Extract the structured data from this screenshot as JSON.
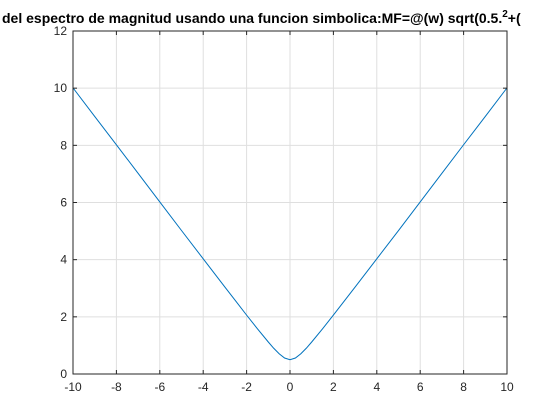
{
  "chart_data": {
    "type": "line",
    "title_prefix": "del espectro de magnitud usando una funcion simbolica:MF=@(w) sqrt(0.5.",
    "title_superscript": "2",
    "title_suffix": "+(",
    "xlim": [
      -10,
      10
    ],
    "ylim": [
      0,
      12
    ],
    "x_ticks": [
      -10,
      -8,
      -6,
      -4,
      -2,
      0,
      2,
      4,
      6,
      8,
      10
    ],
    "y_ticks": [
      0,
      2,
      4,
      6,
      8,
      10,
      12
    ],
    "grid": true,
    "series": [
      {
        "color": "#0072bd",
        "x": [
          -10,
          -9,
          -8,
          -7,
          -6,
          -5,
          -4,
          -3,
          -2.5,
          -2,
          -1.5,
          -1,
          -0.75,
          -0.5,
          -0.25,
          0,
          0.25,
          0.5,
          0.75,
          1,
          1.5,
          2,
          2.5,
          3,
          4,
          5,
          6,
          7,
          8,
          9,
          10
        ],
        "y": [
          10.01,
          9.01,
          8.02,
          7.02,
          6.02,
          5.02,
          4.03,
          3.04,
          2.55,
          2.06,
          1.58,
          1.12,
          0.9,
          0.71,
          0.56,
          0.5,
          0.56,
          0.71,
          0.9,
          1.12,
          1.58,
          2.06,
          2.55,
          3.04,
          4.03,
          5.02,
          6.02,
          7.02,
          8.02,
          9.01,
          10.01
        ]
      }
    ]
  }
}
